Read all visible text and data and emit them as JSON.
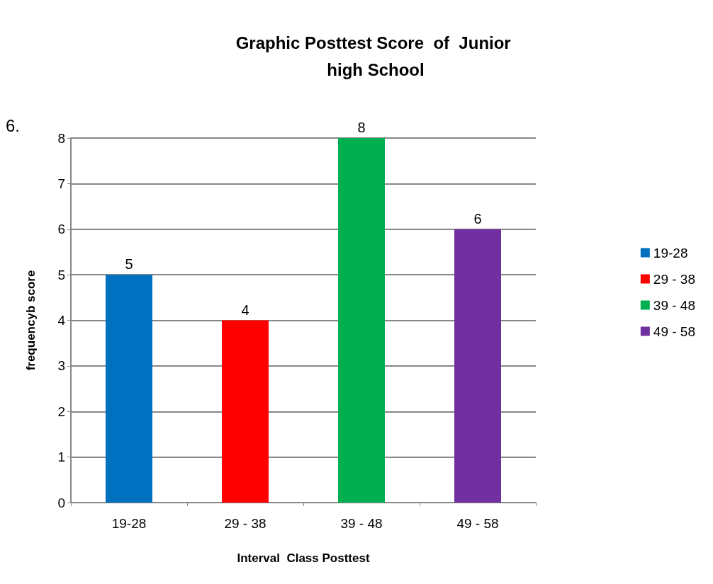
{
  "chart_data": {
    "type": "bar",
    "title": "Graphic Posttest Score  of  Junior high School",
    "xlabel": "Interval  Class Posttest",
    "ylabel": "frequencyb score",
    "categories": [
      "19-28",
      "29 - 38",
      "39 - 48",
      "49 - 58"
    ],
    "series": [
      {
        "name": "19-28",
        "color": "#0070c0",
        "values": [
          5,
          null,
          null,
          null
        ]
      },
      {
        "name": "29 - 38",
        "color": "#ff0000",
        "values": [
          null,
          4,
          null,
          null
        ]
      },
      {
        "name": "39 - 48",
        "color": "#00b050",
        "values": [
          null,
          null,
          8,
          null
        ]
      },
      {
        "name": "49 - 58",
        "color": "#7030a0",
        "values": [
          null,
          null,
          null,
          6
        ]
      }
    ],
    "ylim": [
      0,
      8
    ],
    "yticks": [
      0,
      1,
      2,
      3,
      4,
      5,
      6,
      7,
      8
    ],
    "grid": "y",
    "legend": "right",
    "data_labels": true,
    "annotations": [
      "6."
    ]
  }
}
